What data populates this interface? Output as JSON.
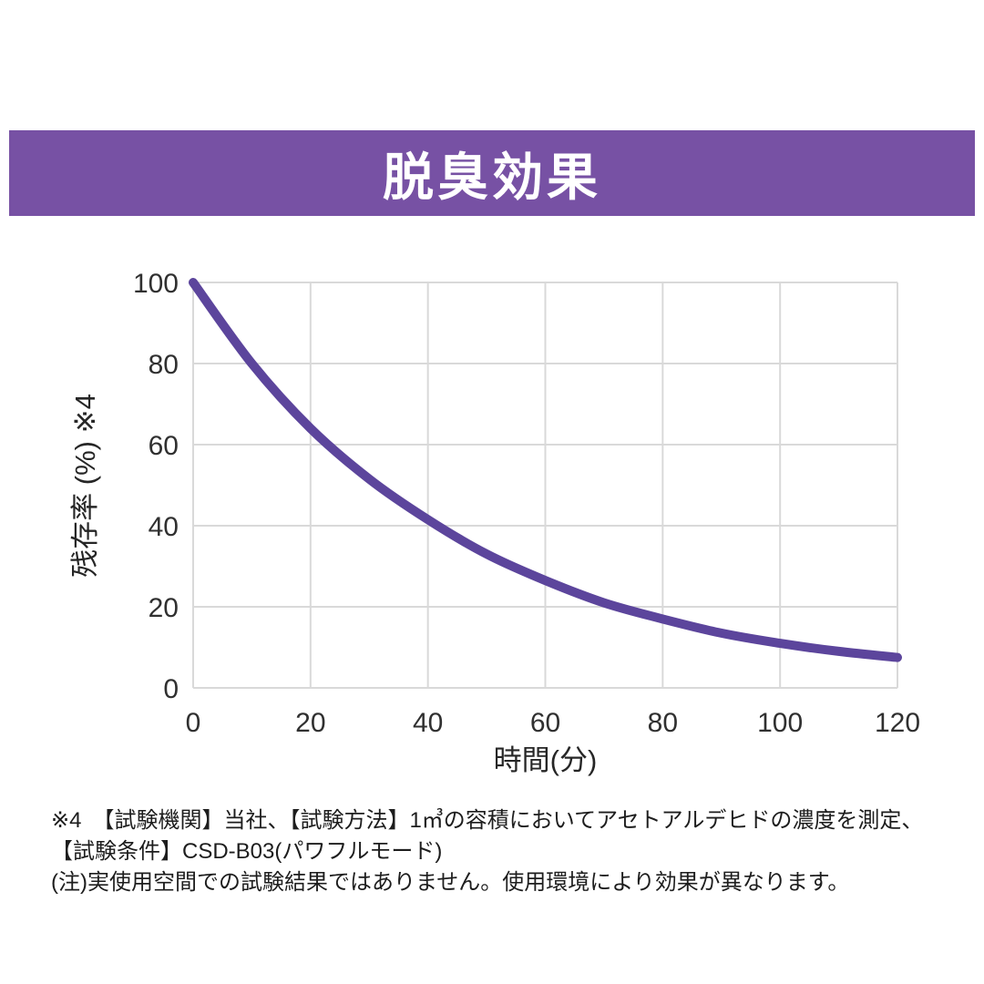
{
  "banner": {
    "title": "脱臭効果",
    "bg_color": "#7751a4",
    "text_color": "#ffffff"
  },
  "chart_data": {
    "type": "line",
    "title": "脱臭効果",
    "xlabel": "時間(分)",
    "ylabel": "残存率 (%) ※4",
    "x": [
      0,
      10,
      20,
      30,
      40,
      50,
      60,
      70,
      80,
      90,
      100,
      110,
      120
    ],
    "series": [
      {
        "name": "残存率",
        "values": [
          100,
          80,
          64,
          51.5,
          41.5,
          33,
          26.5,
          21,
          17,
          13.5,
          11,
          9,
          7.5
        ],
        "color": "#5c459c",
        "stroke_width": 10
      }
    ],
    "xlim": [
      0,
      120
    ],
    "ylim": [
      0,
      100
    ],
    "xticks": [
      0,
      20,
      40,
      60,
      80,
      100,
      120
    ],
    "yticks": [
      0,
      20,
      40,
      60,
      80,
      100
    ],
    "grid": true,
    "gridline_color": "#d9d9d9",
    "legend_position": "none"
  },
  "footnote": {
    "lines": [
      "※4　【試験機関】当社、【試験方法】1㎥の容積においてアセトアルデヒドの濃度を測定、",
      "【試験条件】CSD-B03(パワフルモード)",
      "(注)実使用空間での試験結果ではありません。使用環境により効果が異なります。"
    ]
  }
}
